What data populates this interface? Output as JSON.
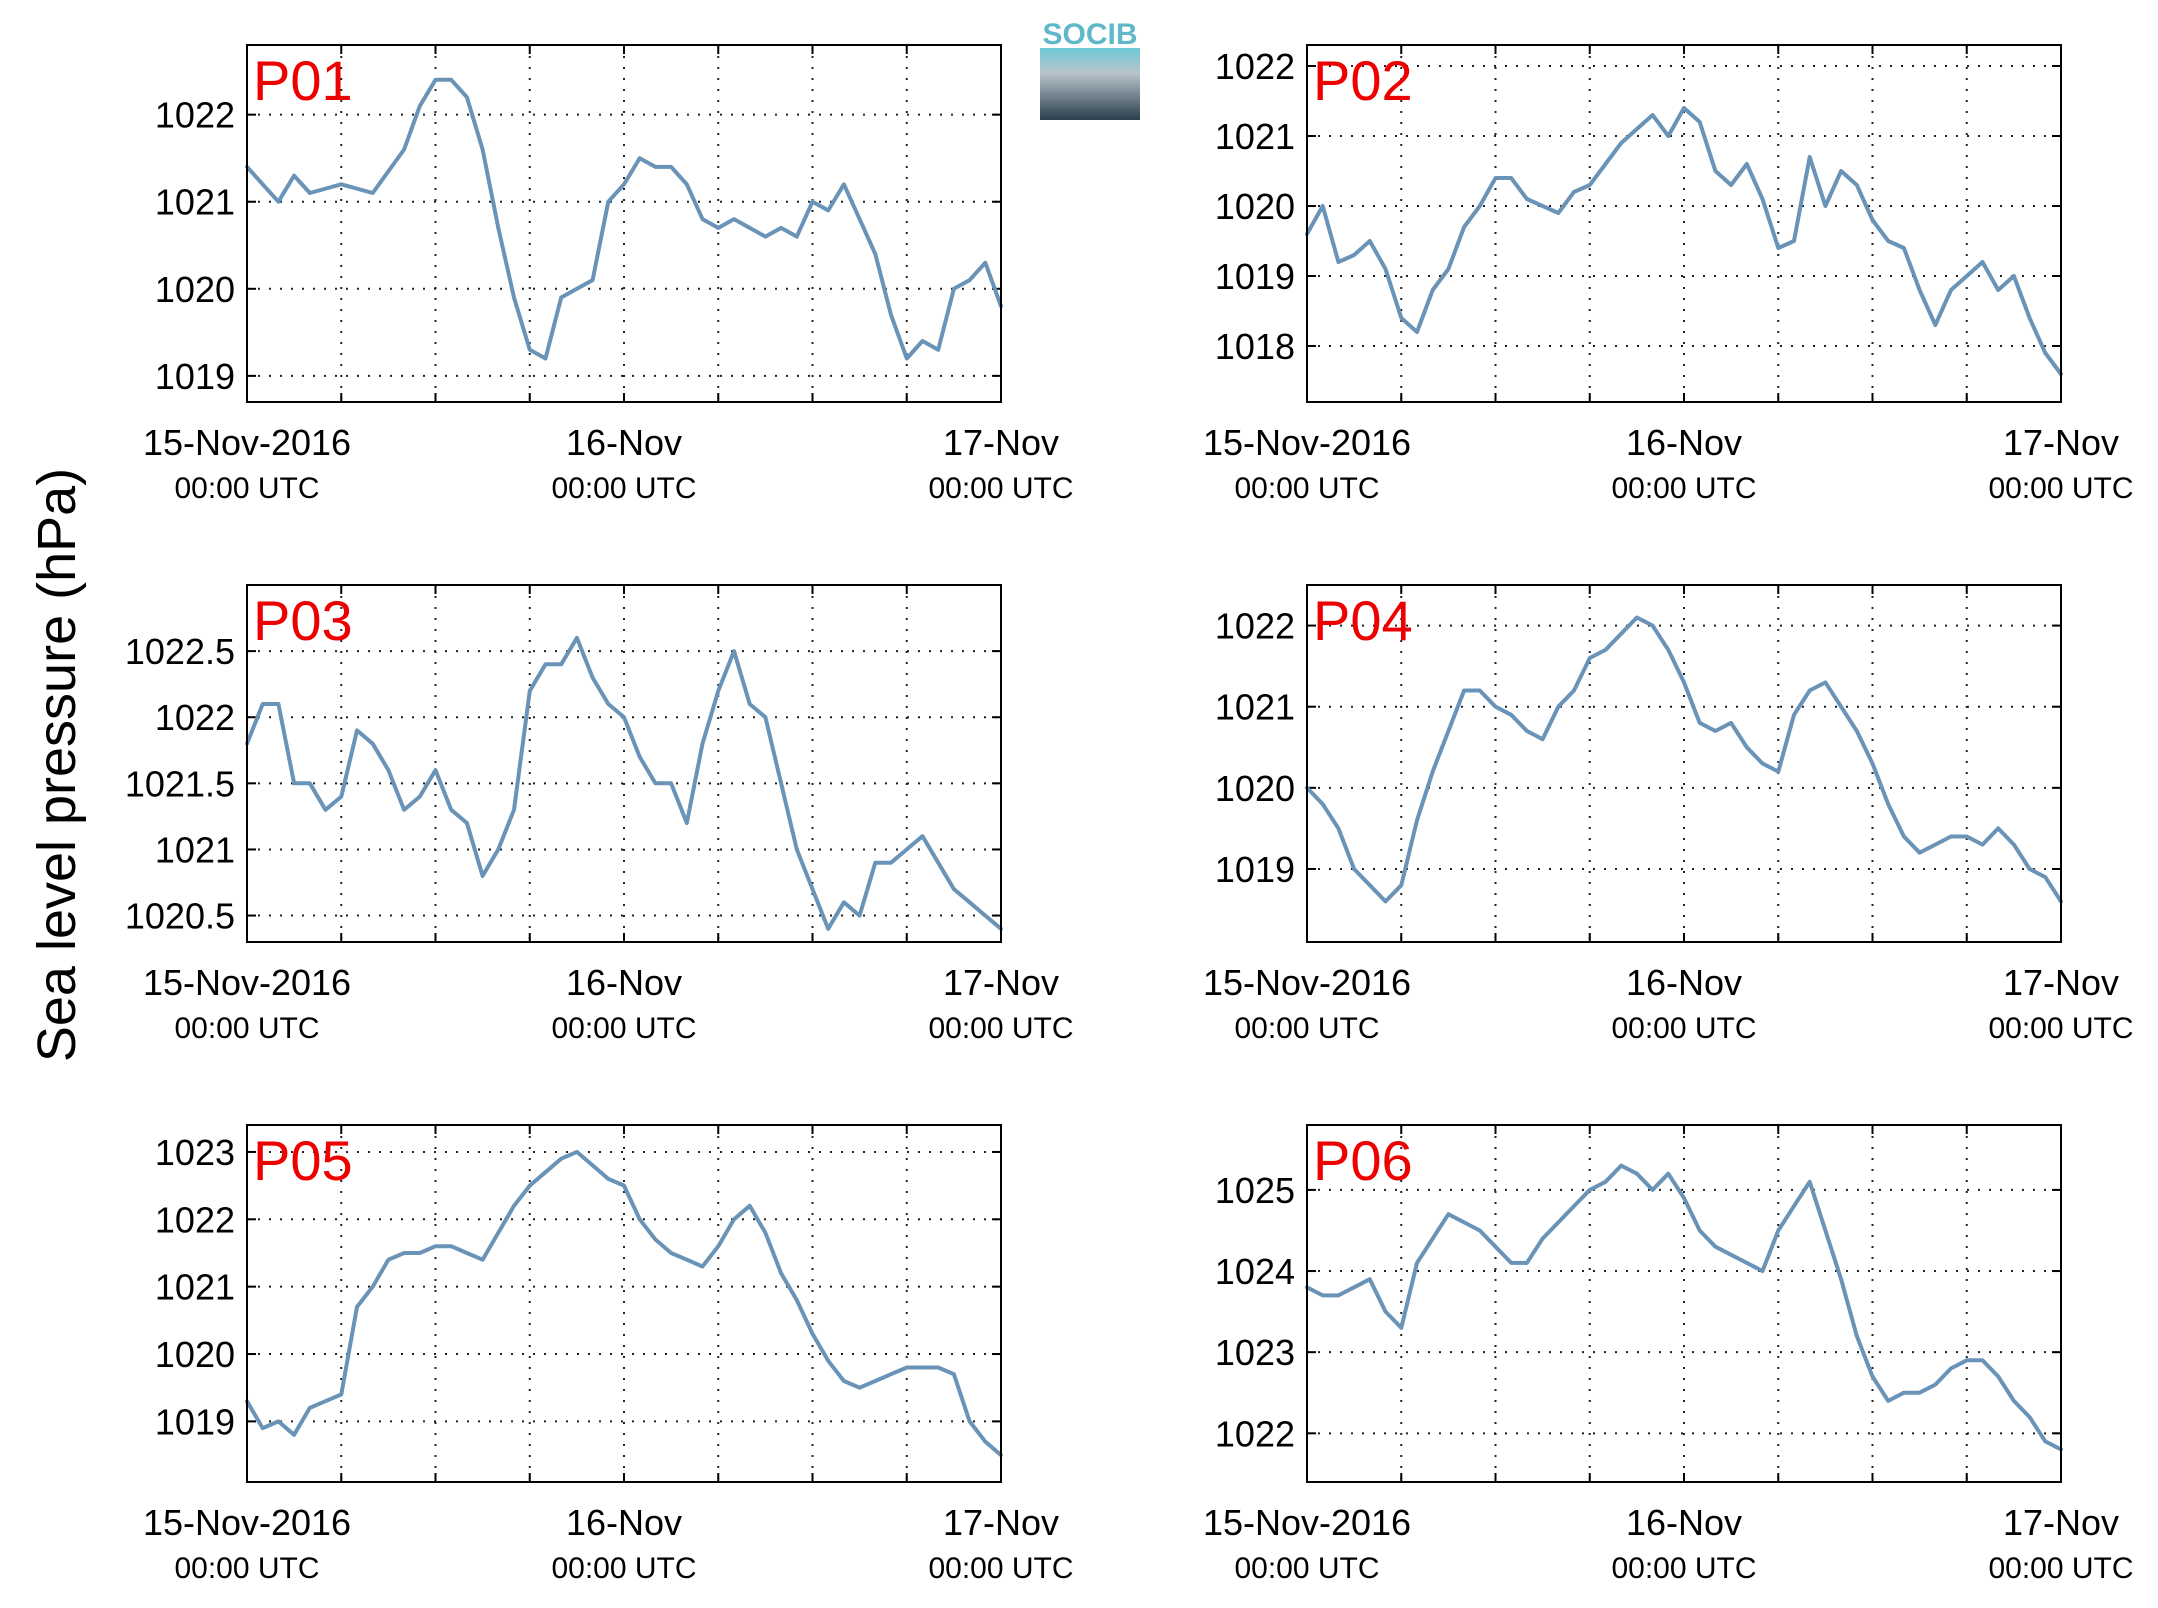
{
  "ylabel": "Sea level pressure (hPa)",
  "logo": {
    "text": "SOCIB"
  },
  "x_tick_labels": [
    {
      "date": "15-Nov-2016",
      "time": "00:00 UTC"
    },
    {
      "date": "16-Nov",
      "time": "00:00 UTC"
    },
    {
      "date": "17-Nov",
      "time": "00:00 UTC"
    }
  ],
  "colors": {
    "line": "#6a93b8",
    "tag": "#ee0000",
    "grid": "#222222"
  },
  "chart_data": [
    {
      "type": "line",
      "name": "P01",
      "x_range": [
        "2016-11-15 00:00",
        "2016-11-17 00:00"
      ],
      "ylim": [
        1018.7,
        1022.8
      ],
      "yticks": [
        1019,
        1020,
        1021,
        1022
      ],
      "series": [
        {
          "x_hours": [
            0,
            1,
            2,
            3,
            4,
            6,
            8,
            10,
            11,
            12,
            13,
            14,
            15,
            16,
            17,
            18,
            19,
            20,
            21,
            22,
            23,
            24,
            25,
            26,
            27,
            28,
            29,
            30,
            31,
            32,
            33,
            34,
            35,
            36,
            37,
            38,
            39,
            40,
            41,
            42,
            43,
            44,
            45,
            46,
            47,
            48
          ],
          "values": [
            1021.4,
            1021.2,
            1021.0,
            1021.3,
            1021.1,
            1021.2,
            1021.1,
            1021.6,
            1022.1,
            1022.4,
            1022.4,
            1022.2,
            1021.6,
            1020.7,
            1019.9,
            1019.3,
            1019.2,
            1019.9,
            1020.0,
            1020.1,
            1021.0,
            1021.2,
            1021.5,
            1021.4,
            1021.4,
            1021.2,
            1020.8,
            1020.7,
            1020.8,
            1020.7,
            1020.6,
            1020.7,
            1020.6,
            1021.0,
            1020.9,
            1021.2,
            1020.8,
            1020.4,
            1019.7,
            1019.2,
            1019.4,
            1019.3,
            1020.0,
            1020.1,
            1020.3,
            1019.8
          ]
        }
      ]
    },
    {
      "type": "line",
      "name": "P02",
      "x_range": [
        "2016-11-15 00:00",
        "2016-11-17 00:00"
      ],
      "ylim": [
        1017.2,
        1022.3
      ],
      "yticks": [
        1018,
        1019,
        1020,
        1021,
        1022
      ],
      "series": [
        {
          "x_hours": [
            0,
            1,
            2,
            3,
            4,
            5,
            6,
            7,
            8,
            9,
            10,
            11,
            12,
            13,
            14,
            15,
            16,
            17,
            18,
            19,
            20,
            21,
            22,
            23,
            24,
            25,
            26,
            27,
            28,
            29,
            30,
            31,
            32,
            33,
            34,
            35,
            36,
            37,
            38,
            39,
            40,
            41,
            42,
            43,
            44,
            45,
            46,
            47,
            48
          ],
          "values": [
            1019.6,
            1020.0,
            1019.2,
            1019.3,
            1019.5,
            1019.1,
            1018.4,
            1018.2,
            1018.8,
            1019.1,
            1019.7,
            1020.0,
            1020.4,
            1020.4,
            1020.1,
            1020.0,
            1019.9,
            1020.2,
            1020.3,
            1020.6,
            1020.9,
            1021.1,
            1021.3,
            1021.0,
            1021.4,
            1021.2,
            1020.5,
            1020.3,
            1020.6,
            1020.1,
            1019.4,
            1019.5,
            1020.7,
            1020.0,
            1020.5,
            1020.3,
            1019.8,
            1019.5,
            1019.4,
            1018.8,
            1018.3,
            1018.8,
            1019.0,
            1019.2,
            1018.8,
            1019.0,
            1018.4,
            1017.9,
            1017.6
          ]
        }
      ]
    },
    {
      "type": "line",
      "name": "P03",
      "x_range": [
        "2016-11-15 00:00",
        "2016-11-17 00:00"
      ],
      "ylim": [
        1020.3,
        1023.0
      ],
      "yticks": [
        1020.5,
        1021,
        1021.5,
        1022,
        1022.5
      ],
      "series": [
        {
          "x_hours": [
            0,
            1,
            2,
            3,
            4,
            5,
            6,
            7,
            8,
            9,
            10,
            11,
            12,
            13,
            14,
            15,
            16,
            17,
            18,
            19,
            20,
            21,
            22,
            23,
            24,
            25,
            26,
            27,
            28,
            29,
            30,
            31,
            32,
            33,
            34,
            35,
            36,
            37,
            38,
            39,
            40,
            41,
            42,
            43,
            44,
            45,
            46,
            47,
            48
          ],
          "values": [
            1021.8,
            1022.1,
            1022.1,
            1021.5,
            1021.5,
            1021.3,
            1021.4,
            1021.9,
            1021.8,
            1021.6,
            1021.3,
            1021.4,
            1021.6,
            1021.3,
            1021.2,
            1020.8,
            1021.0,
            1021.3,
            1022.2,
            1022.4,
            1022.4,
            1022.6,
            1022.3,
            1022.1,
            1022.0,
            1021.7,
            1021.5,
            1021.5,
            1021.2,
            1021.8,
            1022.2,
            1022.5,
            1022.1,
            1022.0,
            1021.5,
            1021.0,
            1020.7,
            1020.4,
            1020.6,
            1020.5,
            1020.9,
            1020.9,
            1021.0,
            1021.1,
            1020.9,
            1020.7,
            1020.6,
            1020.5,
            1020.4
          ]
        }
      ]
    },
    {
      "type": "line",
      "name": "P04",
      "x_range": [
        "2016-11-15 00:00",
        "2016-11-17 00:00"
      ],
      "ylim": [
        1018.1,
        1022.5
      ],
      "yticks": [
        1019,
        1020,
        1021,
        1022
      ],
      "series": [
        {
          "x_hours": [
            0,
            1,
            2,
            3,
            4,
            5,
            6,
            7,
            8,
            9,
            10,
            11,
            12,
            13,
            14,
            15,
            16,
            17,
            18,
            19,
            20,
            21,
            22,
            23,
            24,
            25,
            26,
            27,
            28,
            29,
            30,
            31,
            32,
            33,
            34,
            35,
            36,
            37,
            38,
            39,
            40,
            41,
            42,
            43,
            44,
            45,
            46,
            47,
            48
          ],
          "values": [
            1020.0,
            1019.8,
            1019.5,
            1019.0,
            1018.8,
            1018.6,
            1018.8,
            1019.6,
            1020.2,
            1020.7,
            1021.2,
            1021.2,
            1021.0,
            1020.9,
            1020.7,
            1020.6,
            1021.0,
            1021.2,
            1021.6,
            1021.7,
            1021.9,
            1022.1,
            1022.0,
            1021.7,
            1021.3,
            1020.8,
            1020.7,
            1020.8,
            1020.5,
            1020.3,
            1020.2,
            1020.9,
            1021.2,
            1021.3,
            1021.0,
            1020.7,
            1020.3,
            1019.8,
            1019.4,
            1019.2,
            1019.3,
            1019.4,
            1019.4,
            1019.3,
            1019.5,
            1019.3,
            1019.0,
            1018.9,
            1018.6
          ]
        }
      ]
    },
    {
      "type": "line",
      "name": "P05",
      "x_range": [
        "2016-11-15 00:00",
        "2016-11-17 00:00"
      ],
      "ylim": [
        1018.1,
        1023.4
      ],
      "yticks": [
        1019,
        1020,
        1021,
        1022,
        1023
      ],
      "series": [
        {
          "x_hours": [
            0,
            1,
            2,
            3,
            4,
            5,
            6,
            7,
            8,
            9,
            10,
            11,
            12,
            13,
            14,
            15,
            16,
            17,
            18,
            19,
            20,
            21,
            22,
            23,
            24,
            25,
            26,
            27,
            28,
            29,
            30,
            31,
            32,
            33,
            34,
            35,
            36,
            37,
            38,
            39,
            40,
            41,
            42,
            43,
            44,
            45,
            46,
            47,
            48
          ],
          "values": [
            1019.3,
            1018.9,
            1019.0,
            1018.8,
            1019.2,
            1019.3,
            1019.4,
            1020.7,
            1021.0,
            1021.4,
            1021.5,
            1021.5,
            1021.6,
            1021.6,
            1021.5,
            1021.4,
            1021.8,
            1022.2,
            1022.5,
            1022.7,
            1022.9,
            1023.0,
            1022.8,
            1022.6,
            1022.5,
            1022.0,
            1021.7,
            1021.5,
            1021.4,
            1021.3,
            1021.6,
            1022.0,
            1022.2,
            1021.8,
            1021.2,
            1020.8,
            1020.3,
            1019.9,
            1019.6,
            1019.5,
            1019.6,
            1019.7,
            1019.8,
            1019.8,
            1019.8,
            1019.7,
            1019.0,
            1018.7,
            1018.5
          ]
        }
      ]
    },
    {
      "type": "line",
      "name": "P06",
      "x_range": [
        "2016-11-15 00:00",
        "2016-11-17 00:00"
      ],
      "ylim": [
        1021.4,
        1025.8
      ],
      "yticks": [
        1022,
        1023,
        1024,
        1025
      ],
      "series": [
        {
          "x_hours": [
            0,
            1,
            2,
            3,
            4,
            5,
            6,
            7,
            8,
            9,
            10,
            11,
            12,
            13,
            14,
            15,
            16,
            17,
            18,
            19,
            20,
            21,
            22,
            23,
            24,
            25,
            26,
            27,
            28,
            29,
            30,
            31,
            32,
            33,
            34,
            35,
            36,
            37,
            38,
            39,
            40,
            41,
            42,
            43,
            44,
            45,
            46,
            47,
            48
          ],
          "values": [
            1023.8,
            1023.7,
            1023.7,
            1023.8,
            1023.9,
            1023.5,
            1023.3,
            1024.1,
            1024.4,
            1024.7,
            1024.6,
            1024.5,
            1024.3,
            1024.1,
            1024.1,
            1024.4,
            1024.6,
            1024.8,
            1025.0,
            1025.1,
            1025.3,
            1025.2,
            1025.0,
            1025.2,
            1024.9,
            1024.5,
            1024.3,
            1024.2,
            1024.1,
            1024.0,
            1024.5,
            1024.8,
            1025.1,
            1024.5,
            1023.9,
            1023.2,
            1022.7,
            1022.4,
            1022.5,
            1022.5,
            1022.6,
            1022.8,
            1022.9,
            1022.9,
            1022.7,
            1022.4,
            1022.2,
            1021.9,
            1021.8
          ]
        }
      ]
    }
  ]
}
